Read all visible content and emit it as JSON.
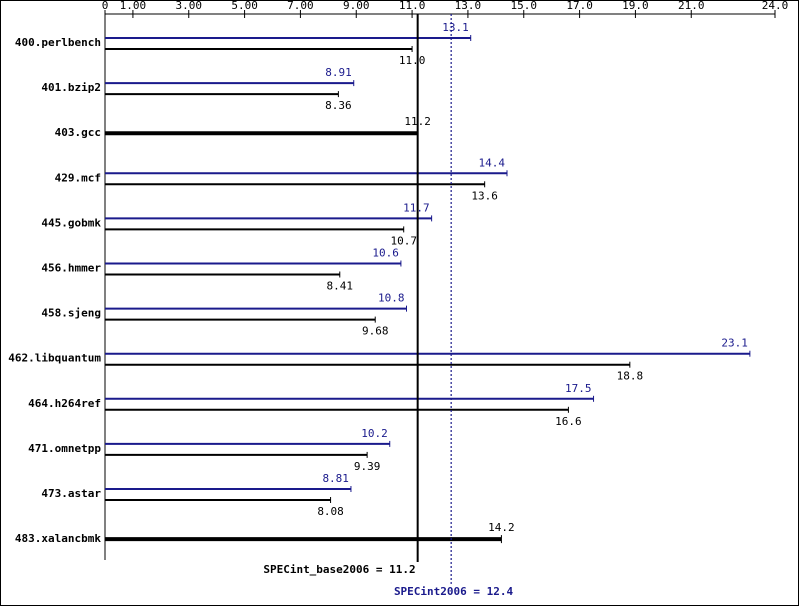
{
  "chart_data": {
    "type": "bar",
    "categories": [
      "400.perlbench",
      "401.bzip2",
      "403.gcc",
      "429.mcf",
      "445.gobmk",
      "456.hmmer",
      "458.sjeng",
      "462.libquantum",
      "464.h264ref",
      "471.omnetpp",
      "473.astar",
      "483.xalancbmk"
    ],
    "series": [
      {
        "color": "#1a1a8c",
        "values": [
          13.1,
          8.91,
          null,
          14.4,
          11.7,
          10.6,
          10.8,
          23.1,
          17.5,
          10.2,
          8.81,
          null
        ],
        "value_labels": [
          "13.1",
          "8.91",
          null,
          "14.4",
          "11.7",
          "10.6",
          "10.8",
          "23.1",
          "17.5",
          "10.2",
          "8.81",
          null
        ]
      },
      {
        "color": "#000000",
        "values": [
          11.0,
          8.36,
          11.2,
          13.6,
          10.7,
          8.41,
          9.68,
          18.8,
          16.6,
          9.39,
          8.08,
          14.2
        ],
        "value_labels": [
          "11.0",
          "8.36",
          "11.2",
          "13.6",
          "10.7",
          "8.41",
          "9.68",
          "18.8",
          "16.6",
          "9.39",
          "8.08",
          "14.2"
        ]
      }
    ],
    "xlim": [
      0,
      24.0
    ],
    "xticks": [
      0,
      {
        "value": 1,
        "label": "1.00"
      },
      {
        "value": 3,
        "label": "3.00"
      },
      {
        "value": 5,
        "label": "5.00"
      },
      {
        "value": 7,
        "label": "7.00"
      },
      {
        "value": 9,
        "label": "9.00"
      },
      {
        "value": 11,
        "label": "11.0"
      },
      {
        "value": 13,
        "label": "13.0"
      },
      {
        "value": 15,
        "label": "15.0"
      },
      {
        "value": 17,
        "label": "17.0"
      },
      {
        "value": 19,
        "label": "19.0"
      },
      {
        "value": 21,
        "label": "21.0"
      },
      {
        "value": 24,
        "label": "24.0"
      }
    ],
    "reference_lines": [
      {
        "label": "SPECint_base2006 = 11.2",
        "value": 11.2,
        "color": "#000000"
      },
      {
        "label": "SPECint2006 = 12.4",
        "value": 12.4,
        "color": "#1a1a8c"
      }
    ]
  }
}
